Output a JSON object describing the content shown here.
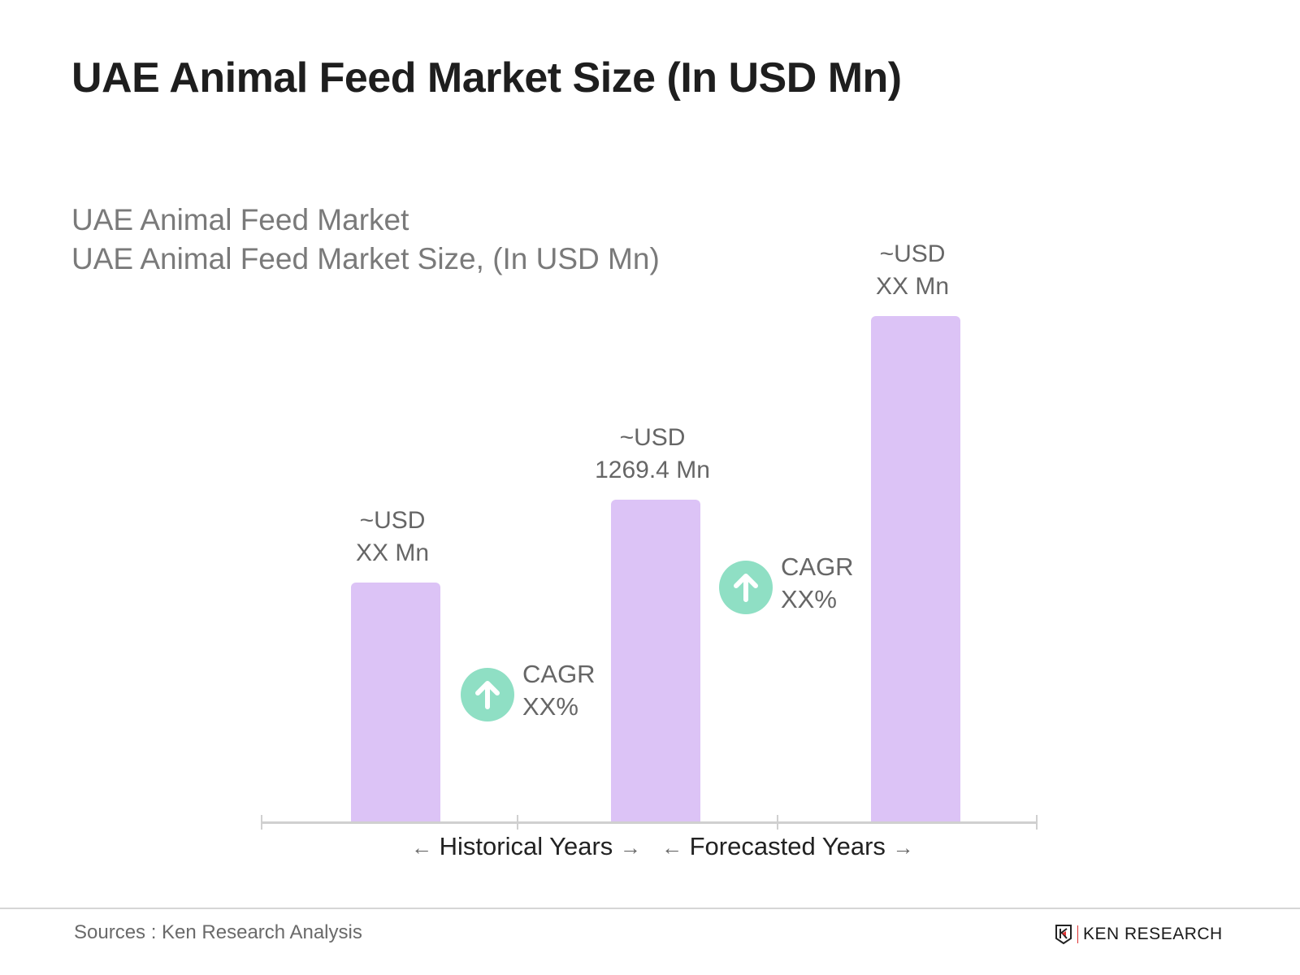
{
  "title": "UAE Animal Feed Market Size (In USD Mn)",
  "subtitle_line1": "UAE Animal Feed Market",
  "subtitle_line2": "UAE Animal Feed Market Size, (In USD Mn)",
  "chart_data": {
    "type": "bar",
    "categories": [
      "",
      "",
      ""
    ],
    "values": [
      null,
      1269.4,
      null
    ],
    "data_labels": [
      {
        "line1": "~USD",
        "line2": "XX Mn"
      },
      {
        "line1": "~USD",
        "line2": "1269.4 Mn"
      },
      {
        "line1": "~USD",
        "line2": "XX Mn"
      }
    ],
    "annotations": [
      {
        "label": "CAGR",
        "value": "XX%"
      },
      {
        "label": "CAGR",
        "value": "XX%"
      }
    ],
    "axis_groups": [
      "Historical Years",
      "Forecasted Years"
    ],
    "bar_color": "#dcc3f6",
    "cagr_color": "#8fdfc4",
    "grid": false
  },
  "source": "Sources : Ken Research Analysis",
  "logo_text": "KEN RESEARCH"
}
